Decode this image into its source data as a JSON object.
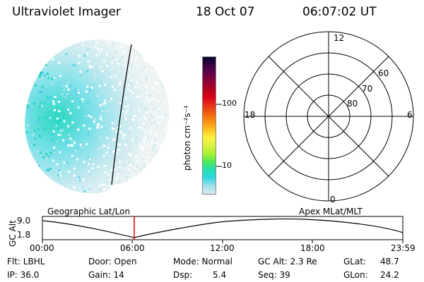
{
  "header": {
    "title": "Ultraviolet Imager",
    "date": "18 Oct 07",
    "time": "06:07:02 UT"
  },
  "colorbar": {
    "label": "photon cm⁻²s⁻¹",
    "ticks": [
      "100",
      "10"
    ],
    "colors": [
      "#000030",
      "#3a0040",
      "#60004a",
      "#8a0036",
      "#b00020",
      "#d8001a",
      "#e83018",
      "#f06010",
      "#f89010",
      "#ffc020",
      "#fff040",
      "#d8f040",
      "#a8f030",
      "#50e858",
      "#20e0b0",
      "#30d8e0",
      "#a0e0ea",
      "#d8e8ee"
    ]
  },
  "polar_grid": {
    "top_label": "12",
    "bottom_label": "0",
    "left_label": "18",
    "right_label": "6",
    "lat_labels": [
      "60",
      "70",
      "80"
    ]
  },
  "timeline": {
    "left_caption": "Geographic Lat/Lon",
    "right_caption": "Apex MLat/MLT",
    "y_axis_label": "GC Alt",
    "y_ticks": [
      "9.0",
      "1.8"
    ],
    "x_ticks": [
      "00:00",
      "06:00",
      "12:00",
      "18:00",
      "23:59"
    ],
    "current_marker_color": "#e00000"
  },
  "info": {
    "filter": "Flt: LBHL",
    "door": "Door: Open",
    "mode": "Mode: Normal",
    "gc_alt": "GC Alt: 2.3 Re",
    "glat": "GLat:",
    "glat_value": "48.7",
    "ip": "IP: 36.0",
    "gain": "Gain: 14",
    "dsp": "Dsp:",
    "dsp_value": "5.4",
    "seq": "Seq: 39",
    "glon": "GLon:",
    "glon_value": "24.2"
  }
}
